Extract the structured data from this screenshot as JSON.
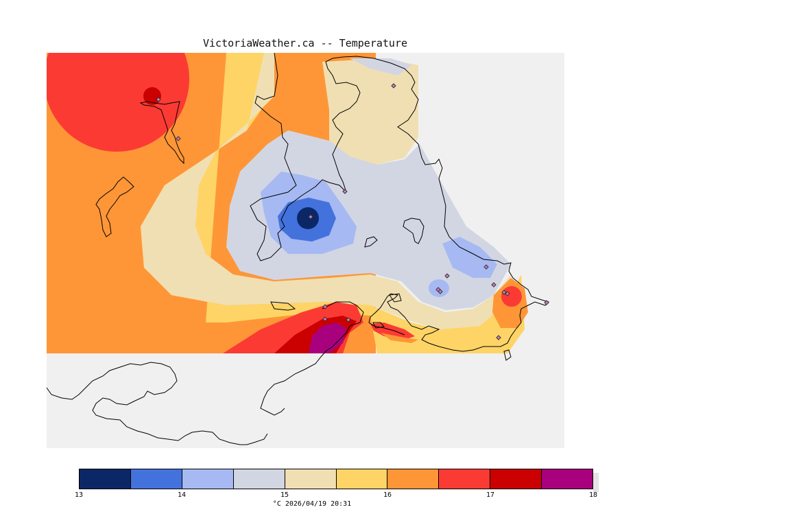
{
  "title": "VictoriaWeather.ca -- Temperature",
  "legend": {
    "levels": [
      {
        "color": "#0b2766"
      },
      {
        "color": "#4472dd"
      },
      {
        "color": "#a6b9f2"
      },
      {
        "color": "#d2d6e3"
      },
      {
        "color": "#f0dfb2"
      },
      {
        "color": "#fed466"
      },
      {
        "color": "#fe9637"
      },
      {
        "color": "#fb3b33"
      },
      {
        "color": "#cb0000"
      },
      {
        "color": "#a9007d"
      }
    ],
    "ticks": [
      "13",
      "14",
      "15",
      "16",
      "17",
      "18"
    ],
    "caption": "°C  2026/04/19 20:31"
  },
  "background_color": "#f0f0f0"
}
